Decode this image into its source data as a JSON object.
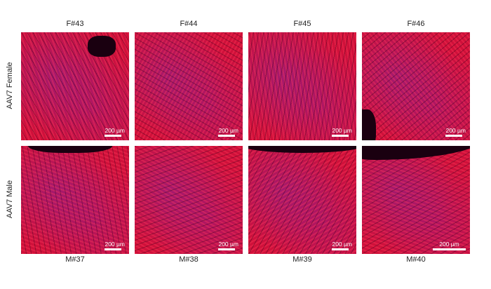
{
  "columns_top": [
    "F#43",
    "F#44",
    "F#45",
    "F#46"
  ],
  "columns_bottom": [
    "M#37",
    "M#38",
    "M#39",
    "M#40"
  ],
  "rows": [
    "AAV7 Female",
    "AAV7 Male"
  ],
  "scale_bar_label": "200 µm",
  "colors": {
    "tissue_red": "#d0103a",
    "nuclei_blue": "#5a28c8",
    "background_dark": "#1a0010"
  }
}
